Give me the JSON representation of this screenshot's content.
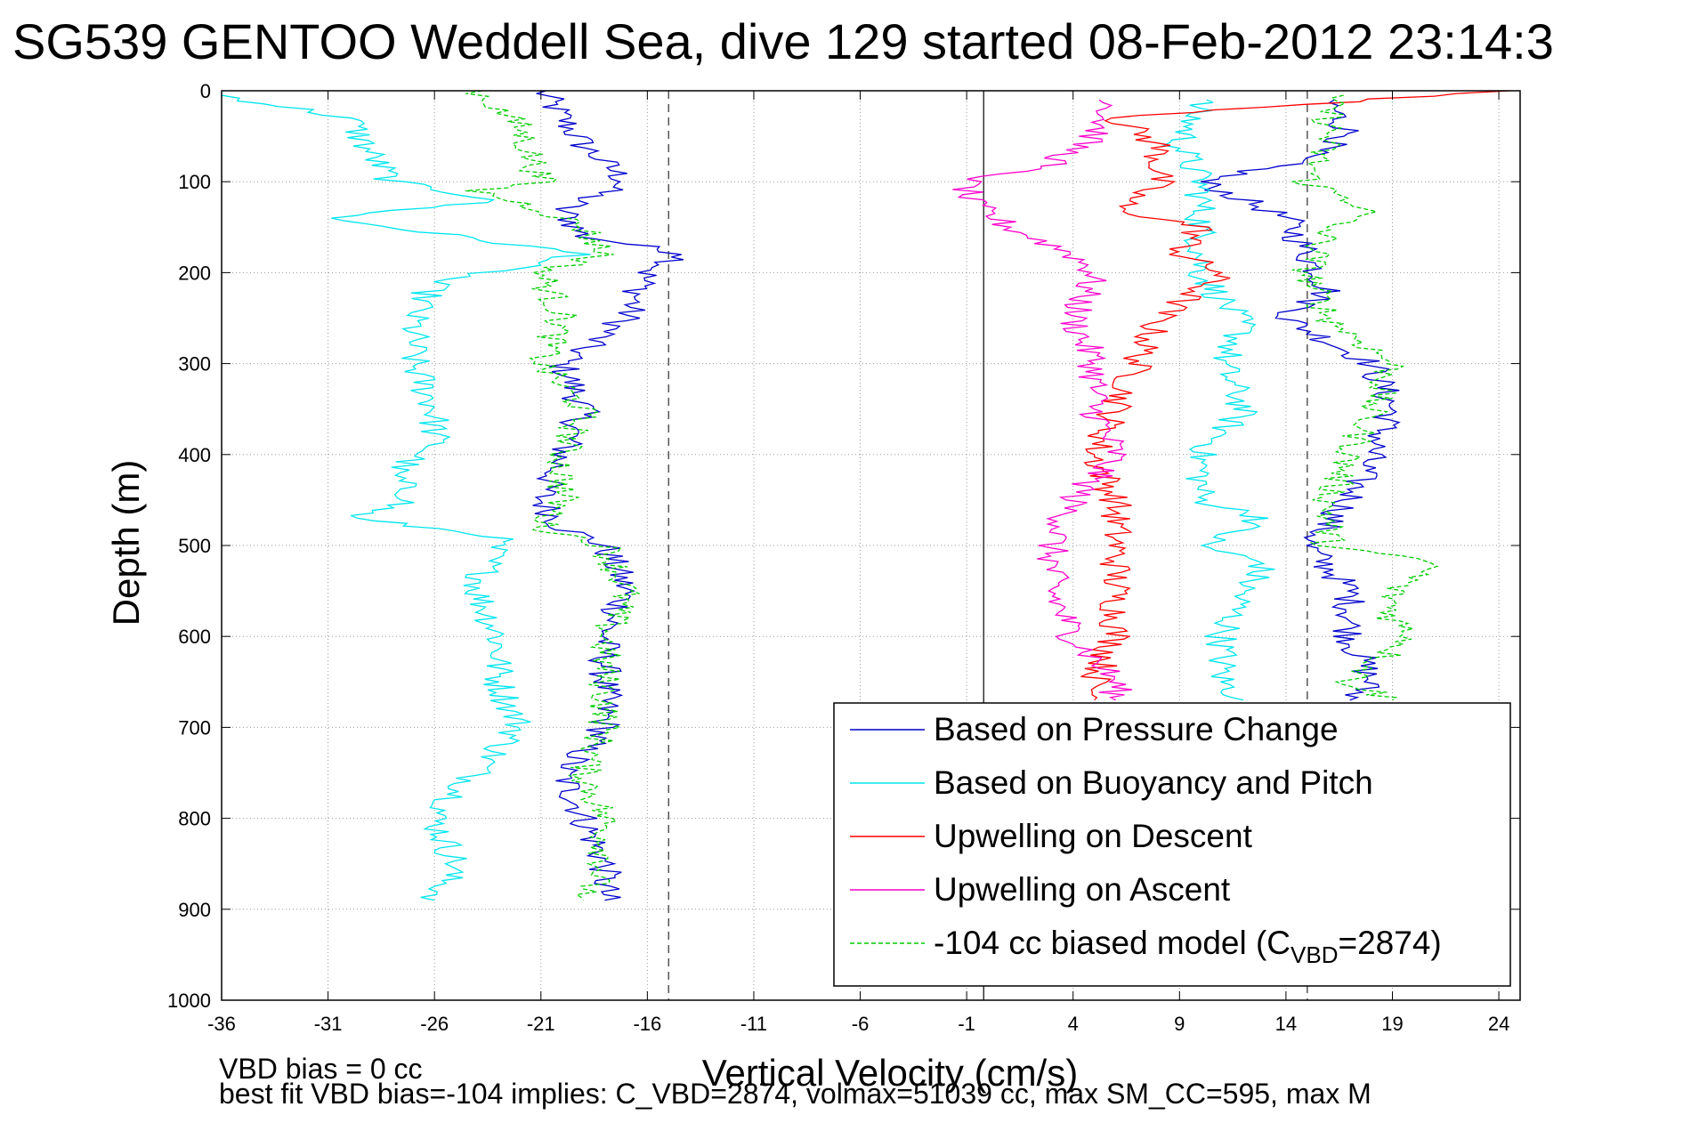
{
  "chart_data": {
    "type": "line",
    "title": "SG539 GENTOO Weddell Sea, dive 129 started 08-Feb-2012 23:14:3",
    "xlabel": "Vertical Velocity (cm/s)",
    "ylabel": "Depth (m)",
    "xlim": [
      -36,
      25
    ],
    "ylim": [
      1000,
      0
    ],
    "y_reversed": true,
    "grid": true,
    "xticks": [
      -36,
      -31,
      -26,
      -21,
      -16,
      -11,
      -6,
      -1,
      4,
      9,
      14,
      19,
      24
    ],
    "yticks": [
      0,
      100,
      200,
      300,
      400,
      500,
      600,
      700,
      800,
      900,
      1000
    ],
    "footer_lines": [
      "VBD bias = 0 cc",
      "best fit VBD bias=-104 implies: C_VBD=2874, volmax=51039 cc, max SM_CC=595, max M"
    ],
    "reference_lines": [
      {
        "x": -15,
        "style": "dashed"
      },
      {
        "x": 15,
        "style": "dashed"
      },
      {
        "x": -0.2,
        "style": "solid"
      }
    ],
    "legend": {
      "placement": "bottom-right",
      "entries": [
        "Based on Pressure Change",
        "Based on Buoyancy and Pitch",
        "Upwelling on Descent",
        "Upwelling on Ascent",
        "-104 cc biased model (C"
      ],
      "entry5_subscript": "VBD",
      "entry5_suffix": "=2874)"
    },
    "series": [
      {
        "name": "Based on Pressure Change",
        "color": "#0000cc",
        "style": "solid",
        "depth": [
          0,
          30,
          60,
          100,
          130,
          160,
          180,
          200,
          250,
          300,
          350,
          400,
          450,
          480,
          500,
          550,
          600,
          650,
          700,
          750,
          800,
          850,
          890
        ],
        "velocity": [
          -21,
          -20,
          -19,
          -17,
          -20,
          -19,
          -14,
          -16,
          -17,
          -20,
          -19,
          -20,
          -21,
          -20,
          -18,
          -17,
          -18,
          -18,
          -18,
          -20,
          -19,
          -18,
          -18
        ]
      },
      {
        "name": "Based on Pressure Change",
        "color": "#0000cc",
        "style": "solid",
        "depth": [
          10,
          50,
          80,
          100,
          140,
          180,
          220,
          250,
          300,
          350,
          400,
          450,
          500,
          550,
          600,
          650,
          670
        ],
        "velocity": [
          16,
          17,
          14,
          10,
          14,
          15,
          16,
          14,
          18,
          19,
          18,
          17,
          15,
          17,
          17,
          18,
          17
        ]
      },
      {
        "name": "Based on Buoyancy and Pitch",
        "color": "#00e5ee",
        "style": "solid",
        "depth": [
          5,
          30,
          70,
          100,
          120,
          140,
          180,
          210,
          250,
          300,
          350,
          390,
          420,
          450,
          470,
          490,
          550,
          600,
          650,
          700,
          750,
          800,
          850,
          890
        ],
        "velocity": [
          -36,
          -30,
          -29,
          -28,
          -23,
          -31,
          -19,
          -26,
          -27,
          -27,
          -26,
          -26,
          -28,
          -27,
          -30,
          -23,
          -24,
          -23,
          -23,
          -22,
          -24,
          -26,
          -25,
          -26
        ]
      },
      {
        "name": "Based on Buoyancy and Pitch",
        "color": "#00e5ee",
        "style": "solid",
        "depth": [
          10,
          60,
          100,
          150,
          200,
          260,
          300,
          350,
          400,
          450,
          470,
          500,
          520,
          550,
          600,
          650,
          670
        ],
        "velocity": [
          10,
          9,
          10,
          10,
          10,
          12,
          11,
          12,
          10,
          10,
          13,
          10,
          13,
          12,
          11,
          11,
          12
        ]
      },
      {
        "name": "Upwelling on Descent",
        "color": "#ff0000",
        "style": "solid",
        "depth": [
          0,
          30,
          60,
          100,
          130,
          150,
          180,
          200,
          250,
          300,
          350,
          400,
          450,
          500,
          550,
          600,
          650,
          670
        ],
        "velocity": [
          24,
          6,
          8,
          8,
          6,
          10,
          9,
          11,
          8,
          7,
          6,
          5,
          6,
          6,
          6,
          6,
          5,
          5
        ]
      },
      {
        "name": "Upwelling on Ascent",
        "color": "#ff00cc",
        "style": "solid",
        "depth": [
          10,
          50,
          80,
          100,
          120,
          150,
          180,
          200,
          250,
          300,
          350,
          400,
          450,
          500,
          550,
          600,
          650,
          670
        ],
        "velocity": [
          6,
          5,
          3,
          -1,
          -1,
          1,
          4,
          5,
          4,
          5,
          5,
          6,
          4,
          3,
          3,
          4,
          6,
          6
        ]
      },
      {
        "name": "-104 cc biased model (CVBD=2874)",
        "color": "#00cc00",
        "style": "dashed",
        "depth": [
          0,
          40,
          100,
          110,
          130,
          150,
          180,
          200,
          250,
          300,
          350,
          400,
          450,
          480,
          500,
          550,
          600,
          650,
          700,
          750,
          800,
          850,
          890
        ],
        "velocity": [
          -24,
          -22,
          -21,
          -24,
          -21,
          -19,
          -18,
          -21,
          -20,
          -21,
          -19,
          -20,
          -20,
          -21,
          -18,
          -17,
          -18,
          -18,
          -18,
          -19,
          -18,
          -18,
          -19
        ]
      },
      {
        "name": "-104 cc biased model (CVBD=2874)",
        "color": "#00cc00",
        "style": "dashed",
        "depth": [
          5,
          50,
          100,
          130,
          150,
          200,
          250,
          300,
          350,
          400,
          450,
          500,
          520,
          550,
          580,
          600,
          650,
          670
        ],
        "velocity": [
          16,
          16,
          15,
          18,
          16,
          15,
          16,
          19,
          18,
          17,
          16,
          16,
          21,
          19,
          19,
          20,
          17,
          19
        ]
      }
    ]
  }
}
